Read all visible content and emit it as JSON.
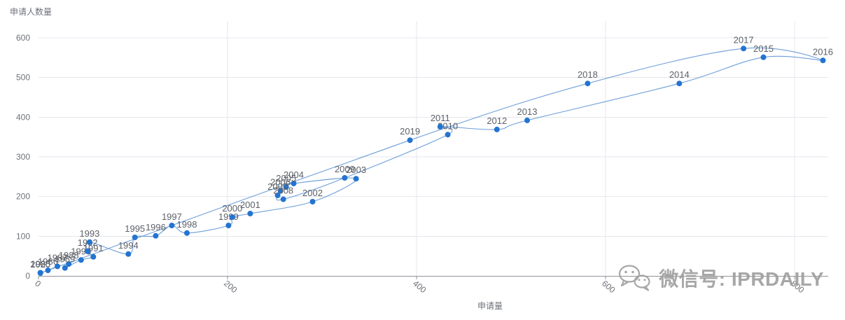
{
  "chart": {
    "colors": {
      "line": "#4a86cf",
      "point": "#2374d0",
      "grid": "#e4e7ec",
      "axis": "#909399",
      "tick_label": "#6e7279",
      "data_label": "#5d6168",
      "watermark": "#9e9e9e"
    }
  },
  "chart_data": {
    "type": "scatter",
    "subtype": "connected-scatter-year-path",
    "title": "",
    "xlabel": "申请量",
    "ylabel": "申请人数量",
    "xlim": [
      0,
      835
    ],
    "ylim": [
      0,
      600
    ],
    "x_ticks": [
      0,
      200,
      400,
      600,
      800
    ],
    "y_ticks": [
      0,
      100,
      200,
      300,
      400,
      500,
      600
    ],
    "grid": true,
    "legend": false,
    "series": [
      {
        "points": [
          {
            "year": "1985",
            "x": 2,
            "y": 8
          },
          {
            "year": "1986",
            "x": 10,
            "y": 14
          },
          {
            "year": "1987",
            "x": 20,
            "y": 24
          },
          {
            "year": "1988",
            "x": 32,
            "y": 30
          },
          {
            "year": "1989",
            "x": 28,
            "y": 20
          },
          {
            "year": "1990",
            "x": 45,
            "y": 40
          },
          {
            "year": "1991",
            "x": 58,
            "y": 48
          },
          {
            "year": "1992",
            "x": 52,
            "y": 62
          },
          {
            "year": "1993",
            "x": 54,
            "y": 85
          },
          {
            "year": "1994",
            "x": 95,
            "y": 55
          },
          {
            "year": "1995",
            "x": 102,
            "y": 97
          },
          {
            "year": "1996",
            "x": 124,
            "y": 101
          },
          {
            "year": "1997",
            "x": 141,
            "y": 127
          },
          {
            "year": "1998",
            "x": 157,
            "y": 108
          },
          {
            "year": "1999",
            "x": 201,
            "y": 127
          },
          {
            "year": "2000",
            "x": 205,
            "y": 148
          },
          {
            "year": "2001",
            "x": 224,
            "y": 157
          },
          {
            "year": "2002",
            "x": 290,
            "y": 187
          },
          {
            "year": "2003",
            "x": 336,
            "y": 245
          },
          {
            "year": "2004",
            "x": 270,
            "y": 233
          },
          {
            "year": "2005",
            "x": 262,
            "y": 224
          },
          {
            "year": "2006",
            "x": 256,
            "y": 214
          },
          {
            "year": "2007",
            "x": 253,
            "y": 203
          },
          {
            "year": "2008",
            "x": 259,
            "y": 193
          },
          {
            "year": "2009",
            "x": 324,
            "y": 247
          },
          {
            "year": "2010",
            "x": 433,
            "y": 356
          },
          {
            "year": "2011",
            "x": 425,
            "y": 376
          },
          {
            "year": "2012",
            "x": 485,
            "y": 369
          },
          {
            "year": "2013",
            "x": 517,
            "y": 392
          },
          {
            "year": "2014",
            "x": 678,
            "y": 485
          },
          {
            "year": "2015",
            "x": 767,
            "y": 551
          },
          {
            "year": "2016",
            "x": 830,
            "y": 543
          },
          {
            "year": "2017",
            "x": 746,
            "y": 573
          },
          {
            "year": "2018",
            "x": 581,
            "y": 485
          },
          {
            "year": "2019",
            "x": 393,
            "y": 342
          },
          {
            "year": "2020",
            "x": 2,
            "y": 7
          }
        ]
      }
    ]
  },
  "watermark": {
    "text": "微信号: IPRDAILY"
  }
}
